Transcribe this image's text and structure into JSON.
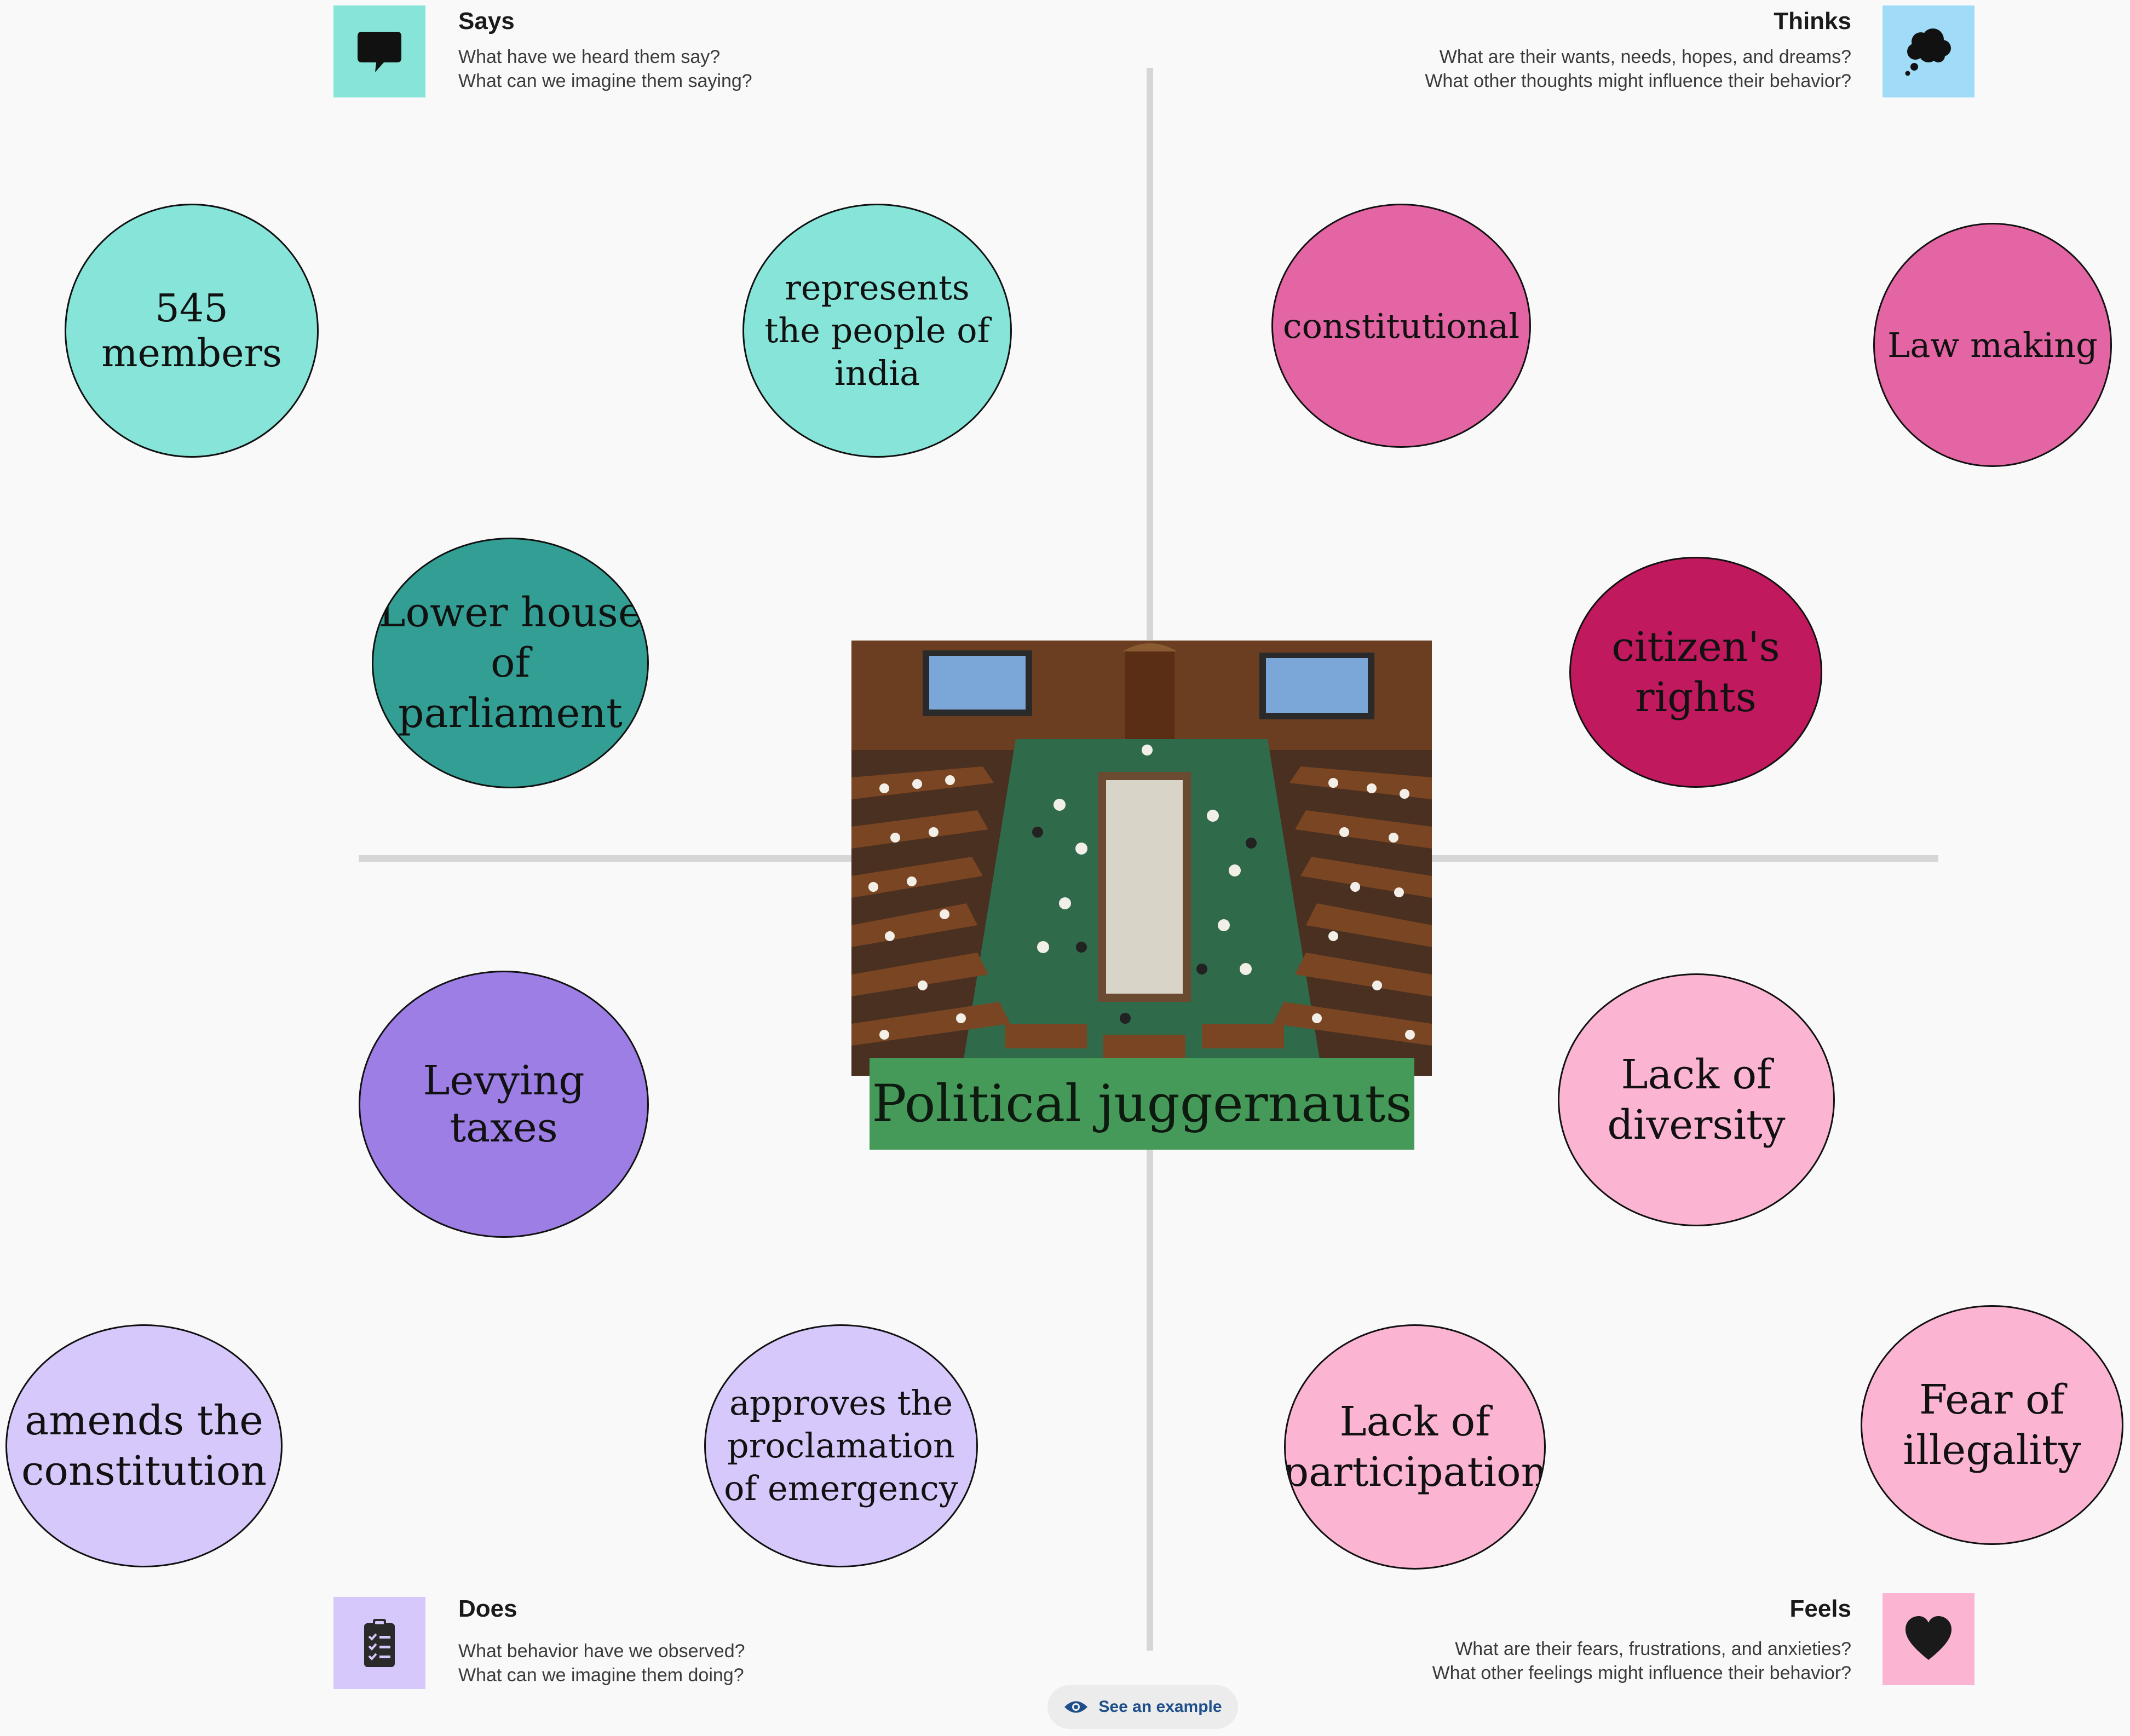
{
  "sections": {
    "says": {
      "title": "Says",
      "q1": "What have we heard them say?",
      "q2": "What can we imagine them saying?",
      "icon": "speech-bubble-icon",
      "color": "#86e5d8"
    },
    "thinks": {
      "title": "Thinks",
      "q1": "What are their wants, needs, hopes, and dreams?",
      "q2": "What other thoughts might influence their behavior?",
      "icon": "thought-cloud-icon",
      "color": "#a0dcf8"
    },
    "does": {
      "title": "Does",
      "q1": "What behavior have we observed?",
      "q2": "What can we imagine them doing?",
      "icon": "clipboard-checklist-icon",
      "color": "#d7c8fb"
    },
    "feels": {
      "title": "Feels",
      "q1": "What are their fears, frustrations, and anxieties?",
      "q2": "What other feelings might influence their behavior?",
      "icon": "heart-icon",
      "color": "#fbb5d3"
    }
  },
  "bubbles": {
    "members": {
      "text": "545 members",
      "color": "#86e5d8"
    },
    "represents": {
      "text": "represents the people of india",
      "color": "#86e5d8"
    },
    "lower_house": {
      "text": "Lower house of parliament",
      "color": "#339e93"
    },
    "constitutional": {
      "text": "constitutional",
      "color": "#e465a3"
    },
    "law_making": {
      "text": "Law making",
      "color": "#e465a3"
    },
    "citizens_rights": {
      "text": "citizen's rights",
      "color": "#c0195e"
    },
    "levying_taxes": {
      "text": "Levying taxes",
      "color": "#9c7ee5"
    },
    "amends": {
      "text": "amends the constitution",
      "color": "#d7c8fb"
    },
    "approves": {
      "text": "approves the proclamation of emergency",
      "color": "#d7c8fb"
    },
    "lack_diversity": {
      "text": "Lack of diversity",
      "color": "#fbb5d3"
    },
    "lack_participation": {
      "text": "Lack of participation",
      "color": "#fbb5d3"
    },
    "fear_illegality": {
      "text": "Fear of illegality",
      "color": "#fbb5d3"
    }
  },
  "center": {
    "title": "Political juggernauts",
    "banner_color": "#459a59",
    "photo": "parliament-chamber-photo"
  },
  "example_button": {
    "label": "See an example",
    "icon": "eye-icon"
  }
}
